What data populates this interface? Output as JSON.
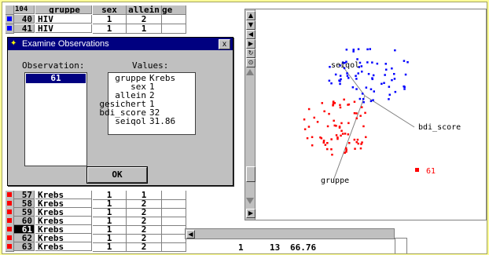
{
  "table": {
    "row_count": "104",
    "columns": [
      "gruppe",
      "sex",
      "allein",
      "ge"
    ],
    "top_rows": [
      {
        "num": "40",
        "gruppe": "HIV",
        "sex": "1",
        "allein": "2",
        "marker": "#0000ff"
      },
      {
        "num": "41",
        "gruppe": "HIV",
        "sex": "1",
        "allein": "1",
        "marker": "#0000ff"
      }
    ],
    "bottom_rows": [
      {
        "num": "57",
        "gruppe": "Krebs",
        "sex": "1",
        "allein": "1",
        "marker": "#ff0000"
      },
      {
        "num": "58",
        "gruppe": "Krebs",
        "sex": "1",
        "allein": "2",
        "marker": "#ff0000"
      },
      {
        "num": "59",
        "gruppe": "Krebs",
        "sex": "1",
        "allein": "2",
        "marker": "#ff0000"
      },
      {
        "num": "60",
        "gruppe": "Krebs",
        "sex": "1",
        "allein": "2",
        "marker": "#ff0000"
      },
      {
        "num": "61",
        "gruppe": "Krebs",
        "sex": "1",
        "allein": "2",
        "marker": "#ff0000",
        "selected": true
      },
      {
        "num": "62",
        "gruppe": "Krebs",
        "sex": "1",
        "allein": "2",
        "marker": "#ff0000"
      },
      {
        "num": "63",
        "gruppe": "Krebs",
        "sex": "1",
        "allein": "2",
        "marker": "#ff0000"
      }
    ],
    "extra_cells": [
      "1",
      "13",
      "66.76"
    ]
  },
  "dialog": {
    "title": "Examine Observations",
    "observation_label": "Observation:",
    "values_label": "Values:",
    "selected_observation": "61",
    "values": [
      {
        "key": "gruppe",
        "value": "Krebs"
      },
      {
        "key": "sex",
        "value": "1"
      },
      {
        "key": "allein",
        "value": "2"
      },
      {
        "key": "gesichert",
        "value": "1"
      },
      {
        "key": "bdi_score",
        "value": "32"
      },
      {
        "key": "seiqol",
        "value": "31.86"
      }
    ],
    "ok_label": "OK",
    "close_label": "x"
  },
  "plot": {
    "axis_labels": {
      "seiqol": "seiqol",
      "bdi_score": "bdi_score",
      "gruppe": "gruppe"
    },
    "highlight_label": "61",
    "colors": {
      "hiv": "#0000ff",
      "krebs": "#ff0000"
    },
    "toolbar_icons": [
      "arrow-up-icon",
      "arrow-down-icon",
      "arrow-left-icon",
      "arrow-right-icon",
      "rotate-icon",
      "reset-icon"
    ]
  }
}
